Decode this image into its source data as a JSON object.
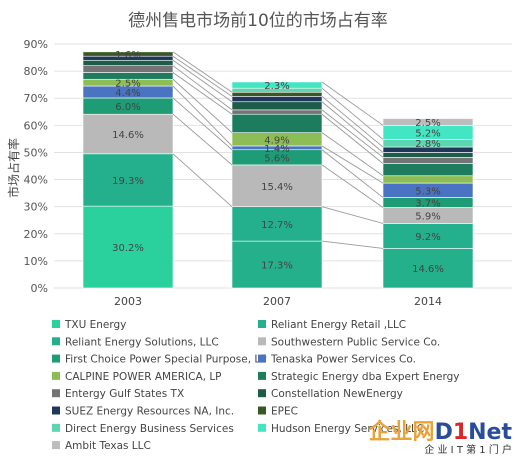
{
  "chart_data": {
    "type": "bar",
    "stacked": true,
    "title": "德州售电市场前10位的市场占有率",
    "ylabel": "市场占有率",
    "xlabel": "",
    "categories": [
      "2003",
      "2007",
      "2014"
    ],
    "ylim": [
      0,
      90
    ],
    "yticks": [
      "0%",
      "10%",
      "20%",
      "30%",
      "40%",
      "50%",
      "60%",
      "70%",
      "80%",
      "90%"
    ],
    "grid": true,
    "legend_position": "bottom",
    "series": [
      {
        "name": "TXU Energy",
        "color": "#2ad19c",
        "values": [
          30.2,
          0,
          0
        ],
        "labels": [
          "30.2%",
          "",
          ""
        ]
      },
      {
        "name": "Reliant Energy Retail ,LLC",
        "color": "#23b08a",
        "values": [
          0,
          17.3,
          14.6
        ],
        "labels": [
          "",
          "17.3%",
          "14.6%"
        ]
      },
      {
        "name": "Reliant Energy Solutions, LLC",
        "color": "#24b08d",
        "values": [
          19.3,
          12.7,
          9.2
        ],
        "labels": [
          "19.3%",
          "12.7%",
          "9.2%"
        ]
      },
      {
        "name": "Southwestern Public Service Co.",
        "color": "#b9b9b9",
        "values": [
          14.6,
          15.4,
          5.9
        ],
        "labels": [
          "14.6%",
          "15.4%",
          "5.9%"
        ]
      },
      {
        "name": "First Choice Power Special Purpose, LP",
        "color": "#1e9c76",
        "values": [
          6.0,
          5.6,
          3.7
        ],
        "labels": [
          "6.0%",
          "5.6%",
          "3.7%"
        ]
      },
      {
        "name": "Tenaska Power Services Co.",
        "color": "#4a73c2",
        "values": [
          4.4,
          1.4,
          5.3
        ],
        "labels": [
          "4.4%",
          "1.4%",
          "5.3%"
        ]
      },
      {
        "name": "CALPINE POWER AMERICA, LP",
        "color": "#8dbd55",
        "values": [
          2.5,
          4.9,
          2.7
        ],
        "labels": [
          "2.5%",
          "4.9%",
          ""
        ]
      },
      {
        "name": "Strategic Energy dba Expert Energy",
        "color": "#1c7c5d",
        "values": [
          2.5,
          6.8,
          4.5
        ],
        "labels": [
          "",
          "",
          ""
        ]
      },
      {
        "name": "Entergy Gulf States TX",
        "color": "#747474",
        "values": [
          2.5,
          1.6,
          2.3
        ],
        "labels": [
          "",
          "",
          ""
        ]
      },
      {
        "name": "Constellation NewEnergy",
        "color": "#1c5c48",
        "values": [
          2.0,
          3.0,
          1.8
        ],
        "labels": [
          "",
          "",
          ""
        ]
      },
      {
        "name": "SUEZ Energy Resources NA, Inc.",
        "color": "#1f3859",
        "values": [
          1.5,
          2.0,
          2.0
        ],
        "labels": [
          "",
          "",
          ""
        ]
      },
      {
        "name": "EPEC",
        "color": "#385723",
        "values": [
          1.6,
          1.5,
          0
        ],
        "labels": [
          "1.6%",
          "",
          ""
        ]
      },
      {
        "name": "Direct Energy Business Services",
        "color": "#5cd6b0",
        "values": [
          0,
          1.5,
          2.8
        ],
        "labels": [
          "",
          "",
          "2.8%"
        ]
      },
      {
        "name": "Hudson Energy Services, LLC",
        "color": "#42e6c2",
        "values": [
          0,
          2.3,
          5.2
        ],
        "labels": [
          "",
          "2.3%",
          "5.2%"
        ]
      },
      {
        "name": "Ambit Texas LLC",
        "color": "#bdbdbd",
        "values": [
          0,
          0,
          2.5
        ],
        "labels": [
          "",
          "",
          "2.5%"
        ]
      }
    ]
  },
  "watermark": {
    "brand_left": "企业网",
    "brand_d": "D",
    "brand_one": "1",
    "brand_net": "Net",
    "tagline": "企 业 I T 第 1 门 户"
  }
}
